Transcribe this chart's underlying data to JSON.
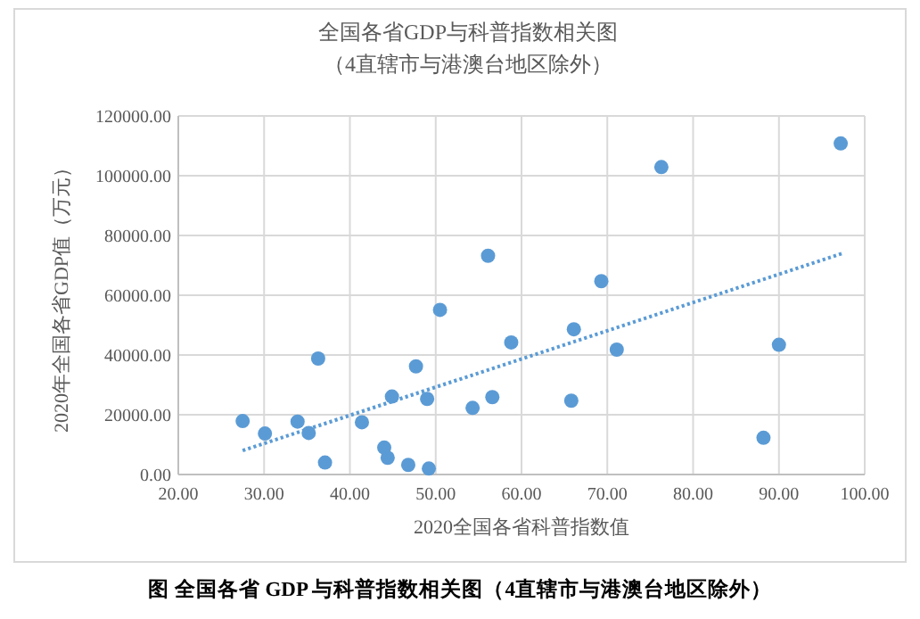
{
  "chart_data": {
    "type": "scatter",
    "title": "全国各省GDP与科普指数相关图",
    "subtitle": "（4直辖市与港澳台地区除外）",
    "xlabel": "2020全国各省科普指数值",
    "ylabel": "2020年全国各省GDP值（万元）",
    "annotations": [
      "图 全国各省 GDP 与科普指数相关图（4直辖市与港澳台地区除外）"
    ],
    "xlim": [
      20,
      100
    ],
    "ylim": [
      0,
      120000
    ],
    "xticks": [
      {
        "value": 20,
        "label": "20.00"
      },
      {
        "value": 30,
        "label": "30.00"
      },
      {
        "value": 40,
        "label": "40.00"
      },
      {
        "value": 50,
        "label": "50.00"
      },
      {
        "value": 60,
        "label": "60.00"
      },
      {
        "value": 70,
        "label": "70.00"
      },
      {
        "value": 80,
        "label": "80.00"
      },
      {
        "value": 90,
        "label": "90.00"
      },
      {
        "value": 100,
        "label": "100.00"
      }
    ],
    "yticks": [
      {
        "value": 0,
        "label": "0.00"
      },
      {
        "value": 20000,
        "label": "20000.00"
      },
      {
        "value": 40000,
        "label": "40000.00"
      },
      {
        "value": 60000,
        "label": "60000.00"
      },
      {
        "value": 80000,
        "label": "80000.00"
      },
      {
        "value": 100000,
        "label": "100000.00"
      },
      {
        "value": 120000,
        "label": "120000.00"
      }
    ],
    "grid": true,
    "marker": "circle",
    "series": [
      {
        "color": "#5b9bd5",
        "x": [
          27.5,
          30.1,
          33.9,
          35.2,
          36.3,
          37.1,
          41.4,
          44.0,
          44.4,
          44.9,
          46.8,
          47.7,
          49.0,
          49.2,
          50.5,
          54.3,
          56.1,
          56.6,
          58.8,
          65.8,
          66.1,
          69.3,
          71.1,
          76.3,
          88.2,
          90.0,
          97.2
        ],
        "values": [
          17900,
          13700,
          17700,
          13900,
          38800,
          4000,
          17500,
          9000,
          5600,
          26100,
          3200,
          36200,
          25300,
          2000,
          55100,
          22300,
          73200,
          25900,
          44200,
          24700,
          48600,
          64700,
          41800,
          102900,
          12300,
          43400,
          110800
        ]
      },
      {
        "type": "line",
        "color": "#5b9bd5",
        "line_style": "dotted",
        "marker": "none",
        "x": [
          27.5,
          97.4
        ],
        "values": [
          8000,
          74000
        ]
      }
    ]
  }
}
